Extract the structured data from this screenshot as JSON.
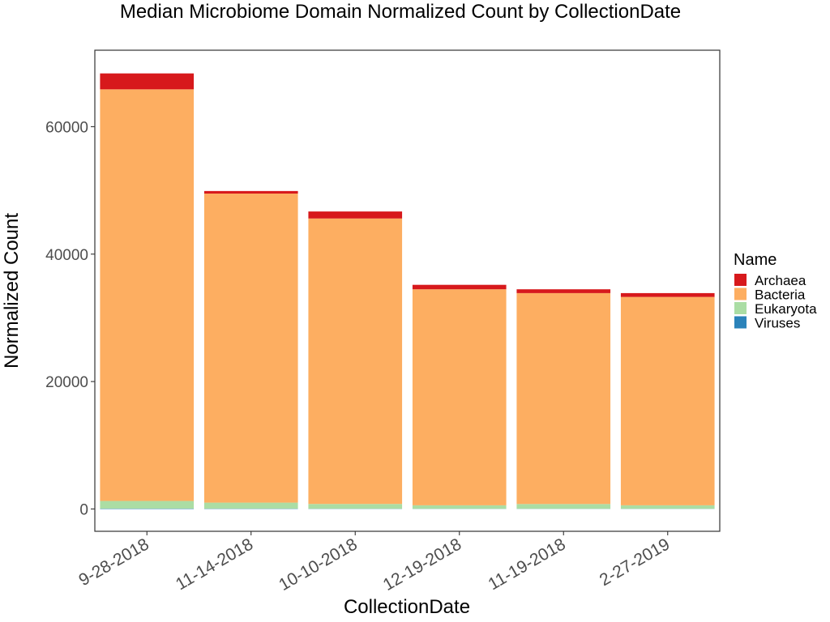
{
  "chart_data": {
    "type": "bar",
    "stacked": true,
    "title": "Median Microbiome Domain Normalized Count by CollectionDate",
    "xlabel": "CollectionDate",
    "ylabel": "Normalized Count",
    "ylim": [
      -3500,
      72000
    ],
    "yticks": [
      0,
      20000,
      40000,
      60000
    ],
    "yticklabels": [
      "0",
      "20000",
      "40000",
      "60000"
    ],
    "grid": false,
    "legend": {
      "title": "Name",
      "position": "right"
    },
    "categories": [
      "9-28-2018",
      "11-14-2018",
      "10-10-2018",
      "12-19-2018",
      "11-19-2018",
      "2-27-2019"
    ],
    "series": [
      {
        "name": "Viruses",
        "color": "#2b83ba",
        "values": [
          60,
          50,
          40,
          30,
          30,
          30
        ]
      },
      {
        "name": "Eukaryota",
        "color": "#abdda4",
        "values": [
          1200,
          950,
          750,
          550,
          750,
          550
        ]
      },
      {
        "name": "Bacteria",
        "color": "#fdae61",
        "values": [
          64600,
          48500,
          44800,
          33900,
          33100,
          32700
        ]
      },
      {
        "name": "Archaea",
        "color": "#d7191c",
        "values": [
          2500,
          400,
          1100,
          700,
          600,
          600
        ]
      }
    ],
    "legend_order": [
      "Archaea",
      "Bacteria",
      "Eukaryota",
      "Viruses"
    ]
  }
}
